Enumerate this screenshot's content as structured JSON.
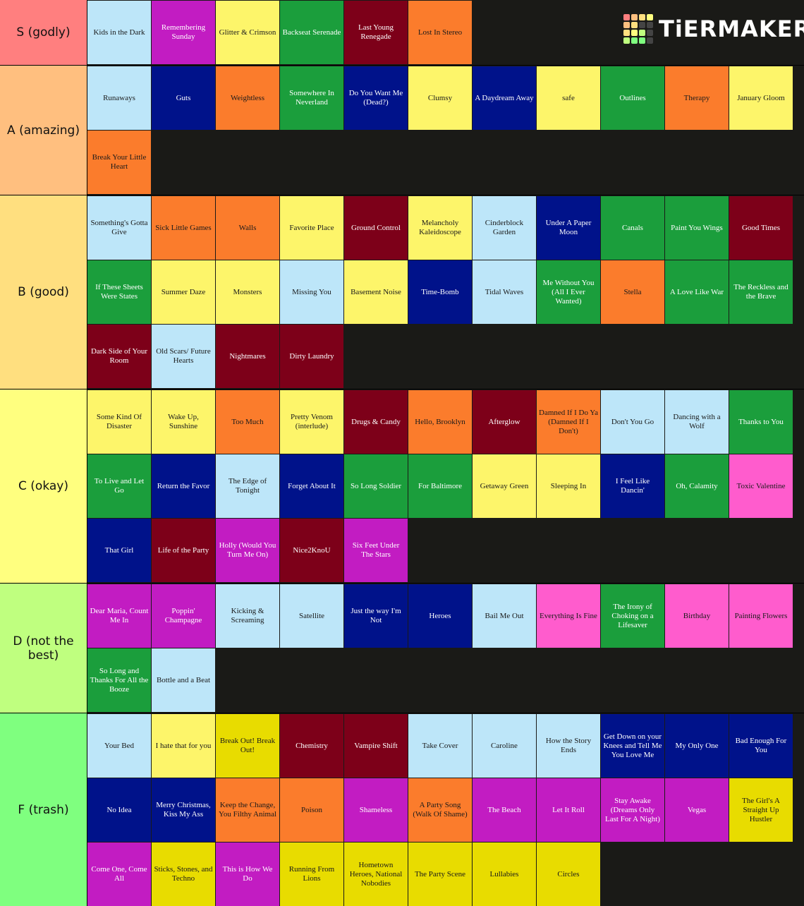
{
  "logo": "TiERMAKER",
  "tiers": [
    {
      "label": "S (godly)",
      "color": "#ff7f7f",
      "items": [
        {
          "text": "Kids in the Dark",
          "color": "#bde6f9"
        },
        {
          "text": "Remembering Sunday",
          "color": "#c21cc2"
        },
        {
          "text": "Glitter & Crimson",
          "color": "#fdf56a"
        },
        {
          "text": "Backseat Serenade",
          "color": "#1b9e3c"
        },
        {
          "text": "Last Young Renegade",
          "color": "#7d0019"
        },
        {
          "text": "Lost In Stereo",
          "color": "#fb7c2c"
        }
      ]
    },
    {
      "label": "A (amazing)",
      "color": "#ffbf7f",
      "items": [
        {
          "text": "Runaways",
          "color": "#bde6f9"
        },
        {
          "text": "Guts",
          "color": "#00128a"
        },
        {
          "text": "Weightless",
          "color": "#fb7c2c"
        },
        {
          "text": "Somewhere In Neverland",
          "color": "#1b9e3c"
        },
        {
          "text": "Do You Want Me (Dead?)",
          "color": "#00128a"
        },
        {
          "text": "Clumsy",
          "color": "#fdf56a"
        },
        {
          "text": "A Daydream Away",
          "color": "#00128a"
        },
        {
          "text": "safe",
          "color": "#fdf56a"
        },
        {
          "text": "Outlines",
          "color": "#1b9e3c"
        },
        {
          "text": "Therapy",
          "color": "#fb7c2c"
        },
        {
          "text": "January Gloom",
          "color": "#fdf56a"
        },
        {
          "text": "Break Your Little Heart",
          "color": "#fb7c2c"
        }
      ]
    },
    {
      "label": "B (good)",
      "color": "#ffdf7f",
      "items": [
        {
          "text": "Something's Gotta Give",
          "color": "#bde6f9"
        },
        {
          "text": "Sick Little Games",
          "color": "#fb7c2c"
        },
        {
          "text": "Walls",
          "color": "#fb7c2c"
        },
        {
          "text": "Favorite Place",
          "color": "#fdf56a"
        },
        {
          "text": "Ground Control",
          "color": "#7d0019"
        },
        {
          "text": "Melancholy Kaleidoscope",
          "color": "#fdf56a"
        },
        {
          "text": "Cinderblock Garden",
          "color": "#bde6f9"
        },
        {
          "text": "Under A Paper Moon",
          "color": "#00128a"
        },
        {
          "text": "Canals",
          "color": "#1b9e3c"
        },
        {
          "text": "Paint You Wings",
          "color": "#1b9e3c"
        },
        {
          "text": "Good Times",
          "color": "#7d0019"
        },
        {
          "text": "If These Sheets Were States",
          "color": "#1b9e3c"
        },
        {
          "text": "Summer Daze",
          "color": "#fdf56a"
        },
        {
          "text": "Monsters",
          "color": "#fdf56a"
        },
        {
          "text": "Missing You",
          "color": "#bde6f9"
        },
        {
          "text": "Basement Noise",
          "color": "#fdf56a"
        },
        {
          "text": "Time-Bomb",
          "color": "#00128a"
        },
        {
          "text": "Tidal Waves",
          "color": "#bde6f9"
        },
        {
          "text": "Me Without You (All I Ever Wanted)",
          "color": "#1b9e3c"
        },
        {
          "text": "Stella",
          "color": "#fb7c2c"
        },
        {
          "text": "A Love Like War",
          "color": "#1b9e3c"
        },
        {
          "text": "The Reckless and the Brave",
          "color": "#1b9e3c"
        },
        {
          "text": "Dark Side of Your Room",
          "color": "#7d0019"
        },
        {
          "text": "Old Scars/ Future Hearts",
          "color": "#bde6f9"
        },
        {
          "text": "Nightmares",
          "color": "#7d0019"
        },
        {
          "text": "Dirty Laundry",
          "color": "#7d0019"
        }
      ]
    },
    {
      "label": "C (okay)",
      "color": "#ffff7f",
      "items": [
        {
          "text": "Some Kind Of Disaster",
          "color": "#fdf56a"
        },
        {
          "text": "Wake Up, Sunshine",
          "color": "#fdf56a"
        },
        {
          "text": "Too Much",
          "color": "#fb7c2c"
        },
        {
          "text": "Pretty Venom (interlude)",
          "color": "#fdf56a"
        },
        {
          "text": "Drugs & Candy",
          "color": "#7d0019"
        },
        {
          "text": "Hello, Brooklyn",
          "color": "#fb7c2c"
        },
        {
          "text": "Afterglow",
          "color": "#7d0019"
        },
        {
          "text": "Damned If I Do Ya (Damned If I Don't)",
          "color": "#fb7c2c"
        },
        {
          "text": "Don't You Go",
          "color": "#bde6f9"
        },
        {
          "text": "Dancing with a Wolf",
          "color": "#bde6f9"
        },
        {
          "text": "Thanks to You",
          "color": "#1b9e3c"
        },
        {
          "text": "To Live and Let Go",
          "color": "#1b9e3c"
        },
        {
          "text": "Return the Favor",
          "color": "#00128a"
        },
        {
          "text": "The Edge of Tonight",
          "color": "#bde6f9"
        },
        {
          "text": "Forget About It",
          "color": "#00128a"
        },
        {
          "text": "So Long Soldier",
          "color": "#1b9e3c"
        },
        {
          "text": "For Baltimore",
          "color": "#1b9e3c"
        },
        {
          "text": "Getaway Green",
          "color": "#fdf56a"
        },
        {
          "text": "Sleeping In",
          "color": "#fdf56a"
        },
        {
          "text": "I Feel Like Dancin'",
          "color": "#00128a"
        },
        {
          "text": "Oh, Calamity",
          "color": "#1b9e3c"
        },
        {
          "text": "Toxic Valentine",
          "color": "#ff5ccd"
        },
        {
          "text": "That Girl",
          "color": "#00128a"
        },
        {
          "text": "Life of the Party",
          "color": "#7d0019"
        },
        {
          "text": "Holly (Would You Turn Me On)",
          "color": "#c21cc2"
        },
        {
          "text": "Nice2KnoU",
          "color": "#7d0019"
        },
        {
          "text": "Six Feet Under The Stars",
          "color": "#c21cc2"
        }
      ]
    },
    {
      "label": "D (not the best)",
      "color": "#bfff7f",
      "items": [
        {
          "text": "Dear Maria, Count Me In",
          "color": "#c21cc2"
        },
        {
          "text": "Poppin' Champagne",
          "color": "#c21cc2"
        },
        {
          "text": "Kicking & Screaming",
          "color": "#bde6f9"
        },
        {
          "text": "Satellite",
          "color": "#bde6f9"
        },
        {
          "text": "Just the way I'm Not",
          "color": "#00128a"
        },
        {
          "text": "Heroes",
          "color": "#00128a"
        },
        {
          "text": "Bail Me Out",
          "color": "#bde6f9"
        },
        {
          "text": "Everything Is Fine",
          "color": "#ff5ccd"
        },
        {
          "text": "The Irony of Choking on a Lifesaver",
          "color": "#1b9e3c"
        },
        {
          "text": "Birthday",
          "color": "#ff5ccd"
        },
        {
          "text": "Painting Flowers",
          "color": "#ff5ccd"
        },
        {
          "text": "So Long and Thanks For All the Booze",
          "color": "#1b9e3c"
        },
        {
          "text": "Bottle and a Beat",
          "color": "#bde6f9"
        }
      ]
    },
    {
      "label": "F (trash)",
      "color": "#7fff7f",
      "items": [
        {
          "text": "Your Bed",
          "color": "#bde6f9"
        },
        {
          "text": "I hate that for you",
          "color": "#fdf56a"
        },
        {
          "text": "Break Out! Break Out!",
          "color": "#e8dc00"
        },
        {
          "text": "Chemistry",
          "color": "#7d0019"
        },
        {
          "text": "Vampire Shift",
          "color": "#7d0019"
        },
        {
          "text": "Take Cover",
          "color": "#bde6f9"
        },
        {
          "text": "Caroline",
          "color": "#bde6f9"
        },
        {
          "text": "How the Story Ends",
          "color": "#bde6f9"
        },
        {
          "text": "Get Down on your Knees and Tell Me You Love Me",
          "color": "#00128a"
        },
        {
          "text": "My Only One",
          "color": "#00128a"
        },
        {
          "text": "Bad Enough For You",
          "color": "#00128a"
        },
        {
          "text": "No Idea",
          "color": "#00128a"
        },
        {
          "text": "Merry Christmas, Kiss My Ass",
          "color": "#00128a"
        },
        {
          "text": "Keep the Change, You Filthy Animal",
          "color": "#fb7c2c"
        },
        {
          "text": "Poison",
          "color": "#fb7c2c"
        },
        {
          "text": "Shameless",
          "color": "#c21cc2"
        },
        {
          "text": "A Party Song (Walk Of Shame)",
          "color": "#fb7c2c"
        },
        {
          "text": "The Beach",
          "color": "#c21cc2"
        },
        {
          "text": "Let It Roll",
          "color": "#c21cc2"
        },
        {
          "text": "Stay Awake (Dreams Only Last For A Night)",
          "color": "#c21cc2"
        },
        {
          "text": "Vegas",
          "color": "#c21cc2"
        },
        {
          "text": "The Girl's A Straight Up Hustler",
          "color": "#e8dc00"
        },
        {
          "text": "Come One, Come All",
          "color": "#c21cc2"
        },
        {
          "text": "Sticks, Stones, and Techno",
          "color": "#e8dc00"
        },
        {
          "text": "This is How We Do",
          "color": "#c21cc2"
        },
        {
          "text": "Running From Lions",
          "color": "#e8dc00"
        },
        {
          "text": "Hometown Heroes, National Nobodies",
          "color": "#e8dc00"
        },
        {
          "text": "The Party Scene",
          "color": "#e8dc00"
        },
        {
          "text": "Lullabies",
          "color": "#e8dc00"
        },
        {
          "text": "Circles",
          "color": "#e8dc00"
        }
      ]
    }
  ]
}
